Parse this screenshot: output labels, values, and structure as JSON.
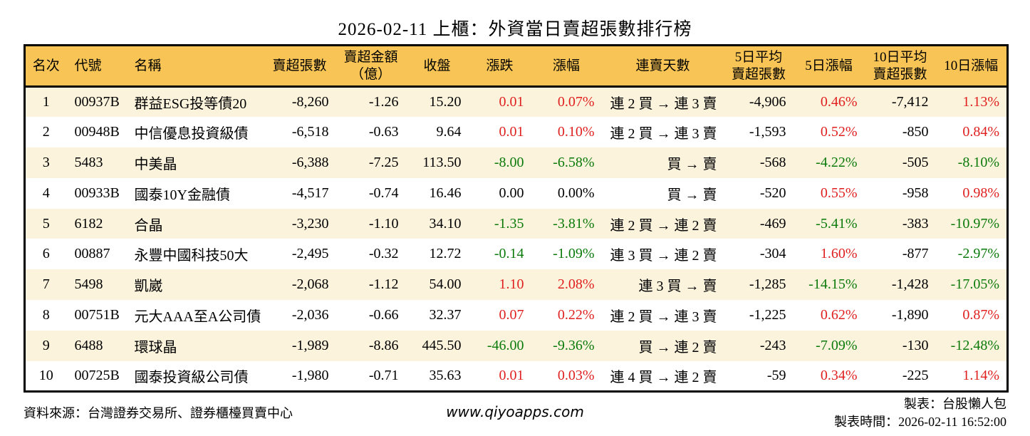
{
  "colors": {
    "up": "#e01f1f",
    "down": "#0a7a0a",
    "header_bg": "#f7c455",
    "stripe_bg": "#fcf3dc",
    "border": "#000000"
  },
  "chart_data": {
    "type": "table",
    "title": "2026-02-11 上櫃：外資當日賣超張數排行榜",
    "legend_note": "red = up, green = down (Taiwan convention)",
    "columns": [
      {
        "key": "rank",
        "label": "名次",
        "align": "center"
      },
      {
        "key": "code",
        "label": "代號",
        "align": "left"
      },
      {
        "key": "name",
        "label": "名稱",
        "align": "left"
      },
      {
        "key": "sell_vol",
        "label": "賣超張數",
        "align": "right"
      },
      {
        "key": "sell_amt",
        "label": "賣超金額\n（億）",
        "align": "right"
      },
      {
        "key": "close",
        "label": "收盤",
        "align": "right"
      },
      {
        "key": "change",
        "label": "漲跌",
        "align": "right"
      },
      {
        "key": "change_pct",
        "label": "漲幅",
        "align": "right"
      },
      {
        "key": "streak",
        "label": "連賣天數",
        "align": "right"
      },
      {
        "key": "avg5",
        "label": "5日平均\n賣超張數",
        "align": "right"
      },
      {
        "key": "pct5",
        "label": "5日漲幅",
        "align": "right"
      },
      {
        "key": "avg10",
        "label": "10日平均\n賣超張數",
        "align": "right"
      },
      {
        "key": "pct10",
        "label": "10日漲幅",
        "align": "right"
      }
    ],
    "rows": [
      {
        "rank": "1",
        "code": "00937B",
        "name": "群益ESG投等債20",
        "sell_vol": "-8,260",
        "sell_amt": "-1.26",
        "close": "15.20",
        "change": {
          "t": "0.01",
          "c": "up"
        },
        "change_pct": {
          "t": "0.07%",
          "c": "up"
        },
        "streak": "連 2 買 → 連 3 賣",
        "avg5": "-4,906",
        "pct5": {
          "t": "0.46%",
          "c": "up"
        },
        "avg10": "-7,412",
        "pct10": {
          "t": "1.13%",
          "c": "up"
        }
      },
      {
        "rank": "2",
        "code": "00948B",
        "name": "中信優息投資級債",
        "sell_vol": "-6,518",
        "sell_amt": "-0.63",
        "close": "9.64",
        "change": {
          "t": "0.01",
          "c": "up"
        },
        "change_pct": {
          "t": "0.10%",
          "c": "up"
        },
        "streak": "連 2 買 → 連 3 賣",
        "avg5": "-1,593",
        "pct5": {
          "t": "0.52%",
          "c": "up"
        },
        "avg10": "-850",
        "pct10": {
          "t": "0.84%",
          "c": "up"
        }
      },
      {
        "rank": "3",
        "code": "5483",
        "name": "中美晶",
        "sell_vol": "-6,388",
        "sell_amt": "-7.25",
        "close": "113.50",
        "change": {
          "t": "-8.00",
          "c": "down"
        },
        "change_pct": {
          "t": "-6.58%",
          "c": "down"
        },
        "streak": "買 → 賣",
        "avg5": "-568",
        "pct5": {
          "t": "-4.22%",
          "c": "down"
        },
        "avg10": "-505",
        "pct10": {
          "t": "-8.10%",
          "c": "down"
        }
      },
      {
        "rank": "4",
        "code": "00933B",
        "name": "國泰10Y金融債",
        "sell_vol": "-4,517",
        "sell_amt": "-0.74",
        "close": "16.46",
        "change": {
          "t": "0.00",
          "c": "flat"
        },
        "change_pct": {
          "t": "0.00%",
          "c": "flat"
        },
        "streak": "買 → 賣",
        "avg5": "-520",
        "pct5": {
          "t": "0.55%",
          "c": "up"
        },
        "avg10": "-958",
        "pct10": {
          "t": "0.98%",
          "c": "up"
        }
      },
      {
        "rank": "5",
        "code": "6182",
        "name": "合晶",
        "sell_vol": "-3,230",
        "sell_amt": "-1.10",
        "close": "34.10",
        "change": {
          "t": "-1.35",
          "c": "down"
        },
        "change_pct": {
          "t": "-3.81%",
          "c": "down"
        },
        "streak": "連 2 買 → 連 2 賣",
        "avg5": "-469",
        "pct5": {
          "t": "-5.41%",
          "c": "down"
        },
        "avg10": "-383",
        "pct10": {
          "t": "-10.97%",
          "c": "down"
        }
      },
      {
        "rank": "6",
        "code": "00887",
        "name": "永豐中國科技50大",
        "sell_vol": "-2,495",
        "sell_amt": "-0.32",
        "close": "12.72",
        "change": {
          "t": "-0.14",
          "c": "down"
        },
        "change_pct": {
          "t": "-1.09%",
          "c": "down"
        },
        "streak": "連 3 買 → 連 2 賣",
        "avg5": "-304",
        "pct5": {
          "t": "1.60%",
          "c": "up"
        },
        "avg10": "-877",
        "pct10": {
          "t": "-2.97%",
          "c": "down"
        }
      },
      {
        "rank": "7",
        "code": "5498",
        "name": "凱崴",
        "sell_vol": "-2,068",
        "sell_amt": "-1.12",
        "close": "54.00",
        "change": {
          "t": "1.10",
          "c": "up"
        },
        "change_pct": {
          "t": "2.08%",
          "c": "up"
        },
        "streak": "連 3 買 → 賣",
        "avg5": "-1,285",
        "pct5": {
          "t": "-14.15%",
          "c": "down"
        },
        "avg10": "-1,428",
        "pct10": {
          "t": "-17.05%",
          "c": "down"
        }
      },
      {
        "rank": "8",
        "code": "00751B",
        "name": "元大AAA至A公司債",
        "sell_vol": "-2,036",
        "sell_amt": "-0.66",
        "close": "32.37",
        "change": {
          "t": "0.07",
          "c": "up"
        },
        "change_pct": {
          "t": "0.22%",
          "c": "up"
        },
        "streak": "連 2 買 → 連 3 賣",
        "avg5": "-1,225",
        "pct5": {
          "t": "0.62%",
          "c": "up"
        },
        "avg10": "-1,890",
        "pct10": {
          "t": "0.87%",
          "c": "up"
        }
      },
      {
        "rank": "9",
        "code": "6488",
        "name": "環球晶",
        "sell_vol": "-1,989",
        "sell_amt": "-8.86",
        "close": "445.50",
        "change": {
          "t": "-46.00",
          "c": "down"
        },
        "change_pct": {
          "t": "-9.36%",
          "c": "down"
        },
        "streak": "買 → 連 2 賣",
        "avg5": "-243",
        "pct5": {
          "t": "-7.09%",
          "c": "down"
        },
        "avg10": "-130",
        "pct10": {
          "t": "-12.48%",
          "c": "down"
        }
      },
      {
        "rank": "10",
        "code": "00725B",
        "name": "國泰投資級公司債",
        "sell_vol": "-1,980",
        "sell_amt": "-0.71",
        "close": "35.63",
        "change": {
          "t": "0.01",
          "c": "up"
        },
        "change_pct": {
          "t": "0.03%",
          "c": "up"
        },
        "streak": "連 4 買 → 連 2 賣",
        "avg5": "-59",
        "pct5": {
          "t": "0.34%",
          "c": "up"
        },
        "avg10": "-225",
        "pct10": {
          "t": "1.14%",
          "c": "up"
        }
      }
    ]
  },
  "footer": {
    "source": "資料來源：台灣證券交易所、證券櫃檯買賣中心",
    "website": "www.qiyoapps.com",
    "made_by": "製表：台股懶人包",
    "made_time": "製表時間：2026-02-11 16:52:00"
  }
}
